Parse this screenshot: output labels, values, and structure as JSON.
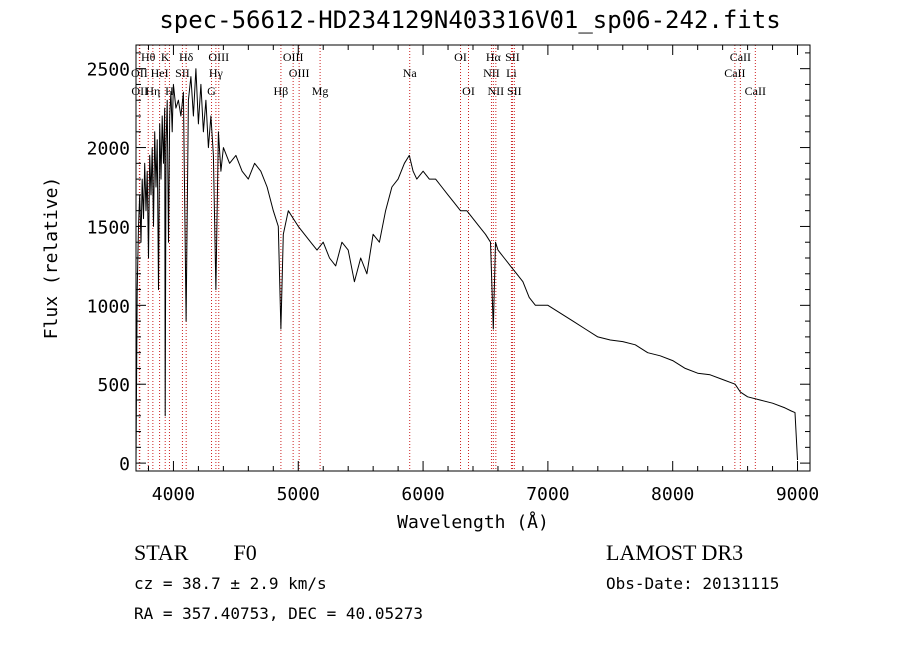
{
  "chart_data": {
    "type": "line",
    "title": "spec-56612-HD234129N403316V01_sp06-242.fits",
    "xlabel": "Wavelength (Å)",
    "ylabel": "Flux (relative)",
    "xlim": [
      3700,
      9100
    ],
    "ylim": [
      -50,
      2650
    ],
    "xticks": [
      4000,
      5000,
      6000,
      7000,
      8000,
      9000
    ],
    "yticks": [
      0,
      500,
      1000,
      1500,
      2000,
      2500
    ],
    "colors": {
      "spectrum": "#000000",
      "lines": "#cc2222"
    },
    "spectrum": {
      "name": "flux",
      "x": [
        3700,
        3710,
        3720,
        3730,
        3740,
        3750,
        3760,
        3770,
        3780,
        3790,
        3800,
        3810,
        3820,
        3830,
        3840,
        3850,
        3860,
        3870,
        3880,
        3890,
        3900,
        3910,
        3920,
        3930,
        3934,
        3940,
        3950,
        3960,
        3970,
        3980,
        3990,
        4000,
        4020,
        4040,
        4060,
        4080,
        4101,
        4120,
        4140,
        4160,
        4180,
        4200,
        4220,
        4240,
        4260,
        4280,
        4300,
        4320,
        4340,
        4360,
        4380,
        4400,
        4450,
        4500,
        4550,
        4600,
        4650,
        4700,
        4750,
        4800,
        4840,
        4861,
        4880,
        4920,
        4960,
        5000,
        5050,
        5100,
        5150,
        5200,
        5250,
        5300,
        5350,
        5400,
        5450,
        5500,
        5550,
        5600,
        5650,
        5700,
        5750,
        5800,
        5850,
        5890,
        5920,
        5950,
        6000,
        6050,
        6100,
        6150,
        6200,
        6250,
        6300,
        6350,
        6400,
        6450,
        6500,
        6540,
        6563,
        6580,
        6600,
        6650,
        6700,
        6750,
        6800,
        6850,
        6900,
        6950,
        7000,
        7100,
        7200,
        7300,
        7400,
        7500,
        7600,
        7700,
        7800,
        7900,
        8000,
        8100,
        8200,
        8300,
        8400,
        8500,
        8542,
        8600,
        8700,
        8800,
        8900,
        8950,
        8980,
        9000
      ],
      "y": [
        0,
        1100,
        1500,
        1700,
        1400,
        1800,
        1550,
        1900,
        1600,
        1850,
        1300,
        1950,
        1700,
        2000,
        1500,
        2100,
        1750,
        2050,
        1100,
        2150,
        1800,
        2200,
        1900,
        2250,
        300,
        2000,
        2300,
        1400,
        2200,
        2350,
        2100,
        2400,
        2250,
        2300,
        2200,
        2350,
        900,
        2300,
        2450,
        2200,
        2500,
        2150,
        2400,
        2100,
        2300,
        2000,
        2200,
        1950,
        1100,
        2100,
        1850,
        2000,
        1900,
        1950,
        1850,
        1800,
        1900,
        1850,
        1750,
        1600,
        1500,
        850,
        1450,
        1600,
        1550,
        1500,
        1450,
        1400,
        1350,
        1400,
        1300,
        1250,
        1400,
        1350,
        1150,
        1300,
        1200,
        1450,
        1400,
        1600,
        1750,
        1800,
        1900,
        1950,
        1850,
        1800,
        1850,
        1800,
        1800,
        1750,
        1700,
        1650,
        1600,
        1600,
        1550,
        1500,
        1450,
        1400,
        850,
        1400,
        1350,
        1300,
        1250,
        1200,
        1150,
        1050,
        1000,
        1000,
        1000,
        950,
        900,
        850,
        800,
        780,
        770,
        750,
        700,
        680,
        650,
        600,
        570,
        560,
        530,
        500,
        450,
        420,
        400,
        380,
        350,
        330,
        320,
        20
      ]
    },
    "emission_lines": [
      {
        "label": "Hθ",
        "wavelength": 3798,
        "row": 0
      },
      {
        "label": "K",
        "wavelength": 3934,
        "row": 0
      },
      {
        "label": "Hδ",
        "wavelength": 4102,
        "row": 0
      },
      {
        "label": "OIII",
        "wavelength": 4363,
        "row": 0
      },
      {
        "label": "OIII",
        "wavelength": 4959,
        "row": 0
      },
      {
        "label": "OI",
        "wavelength": 6300,
        "row": 0
      },
      {
        "label": "Hα",
        "wavelength": 6563,
        "row": 0
      },
      {
        "label": "SII",
        "wavelength": 6716,
        "row": 0
      },
      {
        "label": "CaII",
        "wavelength": 8542,
        "row": 0
      },
      {
        "label": "OII",
        "wavelength": 3727,
        "row": 1
      },
      {
        "label": "HeI",
        "wavelength": 3889,
        "row": 1
      },
      {
        "label": "SII",
        "wavelength": 4072,
        "row": 1
      },
      {
        "label": "Hγ",
        "wavelength": 4340,
        "row": 1
      },
      {
        "label": "OIII",
        "wavelength": 5007,
        "row": 1
      },
      {
        "label": "Na",
        "wavelength": 5893,
        "row": 1
      },
      {
        "label": "NII",
        "wavelength": 6548,
        "row": 1
      },
      {
        "label": "Li",
        "wavelength": 6708,
        "row": 1
      },
      {
        "label": "CaII",
        "wavelength": 8498,
        "row": 1
      },
      {
        "label": "OII",
        "wavelength": 3730,
        "row": 2
      },
      {
        "label": "Hη",
        "wavelength": 3835,
        "row": 2
      },
      {
        "label": "H",
        "wavelength": 3968,
        "row": 2
      },
      {
        "label": "G",
        "wavelength": 4305,
        "row": 2
      },
      {
        "label": "Hβ",
        "wavelength": 4861,
        "row": 2
      },
      {
        "label": "Mg",
        "wavelength": 5175,
        "row": 2
      },
      {
        "label": "OI",
        "wavelength": 6364,
        "row": 2
      },
      {
        "label": "NII",
        "wavelength": 6583,
        "row": 2
      },
      {
        "label": "SII",
        "wavelength": 6731,
        "row": 2
      },
      {
        "label": "CaII",
        "wavelength": 8662,
        "row": 2
      }
    ]
  },
  "footer": {
    "object_class": "STAR",
    "subclass": "F0",
    "survey": "LAMOST DR3",
    "redshift": "cz = 38.7 ± 2.9 km/s",
    "obs_date": "Obs-Date: 20131115",
    "coords": "RA = 357.40753, DEC =  40.05273"
  }
}
